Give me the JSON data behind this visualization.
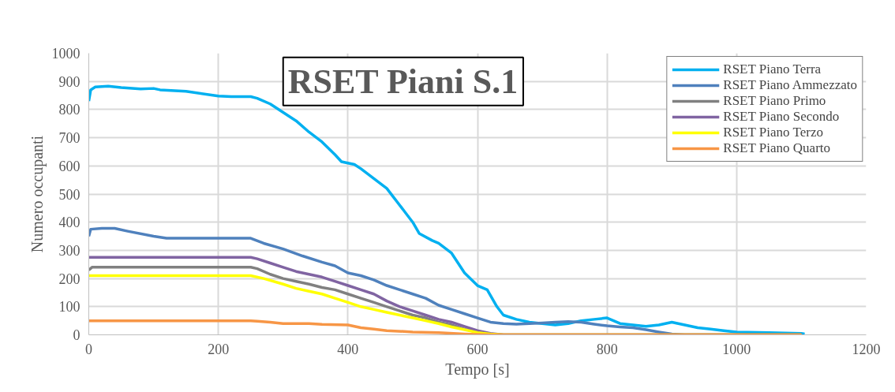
{
  "chart_data": {
    "type": "line",
    "title": "RSET Piani S.1",
    "xlabel": "Tempo [s]",
    "ylabel": "Numero occupanti",
    "xlim": [
      0,
      1200
    ],
    "xticks": [
      0,
      200,
      400,
      600,
      800,
      1000,
      1200
    ],
    "ylim": [
      0,
      1000
    ],
    "yticks": [
      0,
      100,
      200,
      300,
      400,
      500,
      600,
      700,
      800,
      900,
      1000
    ],
    "grid": true,
    "legend": "top right",
    "line_style": "solid",
    "marker": "none",
    "series": [
      {
        "name": "RSET Piano Terra",
        "color": "#00b0f0",
        "x": [
          0,
          3,
          10,
          30,
          50,
          80,
          100,
          110,
          150,
          200,
          220,
          250,
          260,
          280,
          300,
          320,
          340,
          360,
          380,
          390,
          410,
          420,
          440,
          460,
          470,
          490,
          500,
          510,
          530,
          540,
          560,
          580,
          600,
          615,
          630,
          640,
          660,
          680,
          700,
          720,
          740,
          760,
          780,
          800,
          820,
          840,
          860,
          880,
          900,
          920,
          940,
          960,
          980,
          1000,
          1050,
          1100,
          1105
        ],
        "values": [
          830,
          870,
          880,
          883,
          878,
          873,
          875,
          870,
          865,
          848,
          846,
          846,
          840,
          820,
          790,
          760,
          720,
          685,
          640,
          615,
          605,
          590,
          555,
          520,
          490,
          430,
          400,
          360,
          335,
          325,
          290,
          220,
          175,
          160,
          100,
          70,
          55,
          45,
          40,
          35,
          40,
          50,
          55,
          60,
          40,
          35,
          30,
          35,
          45,
          35,
          25,
          20,
          15,
          10,
          8,
          5,
          3
        ]
      },
      {
        "name": "RSET Piano Ammezzato",
        "color": "#4f81bd",
        "x": [
          0,
          3,
          20,
          40,
          60,
          100,
          120,
          250,
          270,
          300,
          330,
          360,
          380,
          400,
          420,
          440,
          460,
          480,
          500,
          520,
          540,
          560,
          580,
          600,
          620,
          640,
          660,
          700,
          720,
          740,
          760,
          780,
          800,
          820,
          840,
          860,
          880,
          900,
          920,
          1100
        ],
        "values": [
          350,
          375,
          378,
          378,
          368,
          350,
          343,
          343,
          325,
          305,
          280,
          258,
          245,
          220,
          210,
          195,
          175,
          160,
          145,
          130,
          105,
          90,
          75,
          60,
          45,
          40,
          38,
          42,
          45,
          47,
          45,
          38,
          32,
          28,
          25,
          18,
          10,
          3,
          0,
          0
        ]
      },
      {
        "name": "RSET Piano Primo",
        "color": "#808080",
        "x": [
          0,
          5,
          250,
          260,
          280,
          300,
          320,
          340,
          360,
          380,
          400,
          420,
          440,
          460,
          480,
          500,
          520,
          540,
          560,
          580,
          600,
          620,
          640,
          1100
        ],
        "values": [
          230,
          240,
          240,
          235,
          215,
          200,
          190,
          180,
          168,
          160,
          145,
          130,
          115,
          100,
          85,
          70,
          60,
          45,
          35,
          20,
          10,
          3,
          0,
          0
        ]
      },
      {
        "name": "RSET Piano Secondo",
        "color": "#8064a2",
        "x": [
          0,
          250,
          260,
          280,
          300,
          320,
          340,
          360,
          380,
          400,
          420,
          440,
          460,
          480,
          500,
          520,
          540,
          560,
          580,
          600,
          620,
          640,
          1100
        ],
        "values": [
          275,
          275,
          270,
          255,
          240,
          225,
          215,
          205,
          190,
          175,
          160,
          145,
          120,
          100,
          85,
          70,
          55,
          45,
          30,
          15,
          5,
          0,
          0
        ]
      },
      {
        "name": "RSET Piano Terzo",
        "color": "#ffff00",
        "x": [
          0,
          250,
          270,
          300,
          320,
          340,
          360,
          380,
          400,
          420,
          440,
          460,
          480,
          500,
          520,
          540,
          560,
          580,
          600,
          620,
          640,
          1100
        ],
        "values": [
          210,
          210,
          200,
          180,
          165,
          155,
          145,
          130,
          115,
          100,
          90,
          80,
          70,
          60,
          50,
          40,
          28,
          18,
          8,
          3,
          0,
          0
        ]
      },
      {
        "name": "RSET Piano Quarto",
        "color": "#f79646",
        "x": [
          0,
          250,
          260,
          280,
          300,
          340,
          360,
          400,
          420,
          440,
          460,
          500,
          540,
          580,
          620,
          1100
        ],
        "values": [
          50,
          50,
          48,
          45,
          40,
          40,
          37,
          35,
          25,
          20,
          15,
          10,
          8,
          3,
          0,
          0
        ]
      }
    ]
  }
}
